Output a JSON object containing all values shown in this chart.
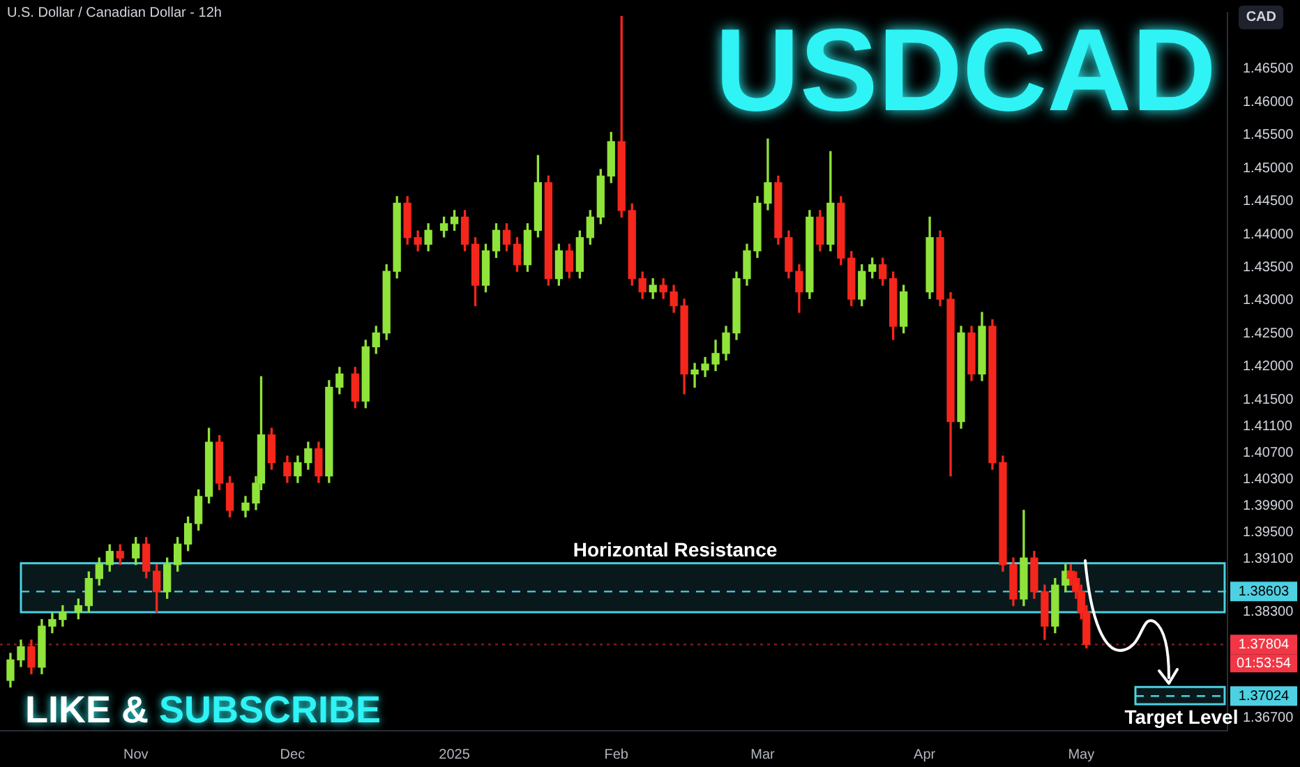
{
  "chart_data": {
    "type": "candlestick",
    "title": "USDCAD",
    "subtitle": "U.S. Dollar / Canadian Dollar - 12h",
    "ylabel": "CAD",
    "annotations": [
      "LIKE & SUBSCRIBE",
      "01:53:54"
    ],
    "x": [
      "2024-10-08",
      "2024-10-10",
      "2024-10-12",
      "2024-10-14",
      "2024-10-16",
      "2024-10-18",
      "2024-10-21",
      "2024-10-23",
      "2024-10-25",
      "2024-10-27",
      "2024-10-29",
      "2024-11-01",
      "2024-11-03",
      "2024-11-05",
      "2024-11-07",
      "2024-11-09",
      "2024-11-11",
      "2024-11-13",
      "2024-11-15",
      "2024-11-17",
      "2024-11-19",
      "2024-11-22",
      "2024-11-24",
      "2024-11-25",
      "2024-11-27",
      "2024-11-30",
      "2024-12-02",
      "2024-12-04",
      "2024-12-06",
      "2024-12-08",
      "2024-12-10",
      "2024-12-13",
      "2024-12-15",
      "2024-12-17",
      "2024-12-19",
      "2024-12-21",
      "2024-12-23",
      "2024-12-25",
      "2024-12-27",
      "2024-12-30",
      "2025-01-01",
      "2025-01-03",
      "2025-01-05",
      "2025-01-07",
      "2025-01-09",
      "2025-01-11",
      "2025-01-13",
      "2025-01-15",
      "2025-01-17",
      "2025-01-19",
      "2025-01-21",
      "2025-01-23",
      "2025-01-25",
      "2025-01-27",
      "2025-01-29",
      "2025-01-31",
      "2025-02-02",
      "2025-02-04",
      "2025-02-06",
      "2025-02-08",
      "2025-02-10",
      "2025-02-12",
      "2025-02-14",
      "2025-02-16",
      "2025-02-18",
      "2025-02-20",
      "2025-02-22",
      "2025-02-24",
      "2025-02-26",
      "2025-02-28",
      "2025-03-02",
      "2025-03-04",
      "2025-03-06",
      "2025-03-08",
      "2025-03-10",
      "2025-03-12",
      "2025-03-14",
      "2025-03-16",
      "2025-03-18",
      "2025-03-20",
      "2025-03-22",
      "2025-03-24",
      "2025-03-26",
      "2025-03-28",
      "2025-04-02",
      "2025-04-04",
      "2025-04-06",
      "2025-04-08",
      "2025-04-10",
      "2025-04-12",
      "2025-04-14",
      "2025-04-16",
      "2025-04-18",
      "2025-04-20",
      "2025-04-22",
      "2025-04-24",
      "2025-04-26",
      "2025-04-28",
      "2025-04-29",
      "2025-04-30",
      "2025-05-01",
      "2025-05-02"
    ],
    "ohlc": [
      [
        1.3726,
        1.3767,
        1.3716,
        1.3757
      ],
      [
        1.3757,
        1.3787,
        1.3747,
        1.3777
      ],
      [
        1.3777,
        1.3787,
        1.3736,
        1.3746
      ],
      [
        1.3746,
        1.3818,
        1.3736,
        1.3808
      ],
      [
        1.3808,
        1.3828,
        1.3798,
        1.3818
      ],
      [
        1.3818,
        1.3839,
        1.3808,
        1.3829
      ],
      [
        1.3829,
        1.3849,
        1.3819,
        1.3839
      ],
      [
        1.3839,
        1.389,
        1.3829,
        1.388
      ],
      [
        1.388,
        1.3911,
        1.387,
        1.3901
      ],
      [
        1.3901,
        1.3931,
        1.3891,
        1.3921
      ],
      [
        1.3921,
        1.3931,
        1.3901,
        1.3911
      ],
      [
        1.3911,
        1.3942,
        1.3901,
        1.3932
      ],
      [
        1.3932,
        1.3942,
        1.3881,
        1.3891
      ],
      [
        1.3891,
        1.3901,
        1.3829,
        1.386
      ],
      [
        1.386,
        1.3911,
        1.385,
        1.3901
      ],
      [
        1.3901,
        1.3942,
        1.3891,
        1.3932
      ],
      [
        1.3932,
        1.3973,
        1.3922,
        1.3963
      ],
      [
        1.3963,
        1.4014,
        1.3953,
        1.4004
      ],
      [
        1.4004,
        1.4107,
        1.3994,
        1.4086
      ],
      [
        1.4086,
        1.4096,
        1.4014,
        1.4024
      ],
      [
        1.4024,
        1.4034,
        1.3973,
        1.3983
      ],
      [
        1.3983,
        1.4004,
        1.3973,
        1.3994
      ],
      [
        1.3994,
        1.4034,
        1.3984,
        1.4024
      ],
      [
        1.4024,
        1.4185,
        1.4014,
        1.4097
      ],
      [
        1.4097,
        1.4107,
        1.4045,
        1.4055
      ],
      [
        1.4055,
        1.4065,
        1.4025,
        1.4035
      ],
      [
        1.4035,
        1.4065,
        1.4025,
        1.4055
      ],
      [
        1.4055,
        1.4086,
        1.4045,
        1.4076
      ],
      [
        1.4076,
        1.4086,
        1.4025,
        1.4035
      ],
      [
        1.4035,
        1.4179,
        1.4025,
        1.4169
      ],
      [
        1.4169,
        1.4199,
        1.4159,
        1.4189
      ],
      [
        1.4189,
        1.4199,
        1.4138,
        1.4148
      ],
      [
        1.4148,
        1.424,
        1.4138,
        1.423
      ],
      [
        1.423,
        1.4261,
        1.422,
        1.4251
      ],
      [
        1.4251,
        1.4354,
        1.4241,
        1.4344
      ],
      [
        1.4344,
        1.4457,
        1.4334,
        1.4447
      ],
      [
        1.4447,
        1.4457,
        1.4385,
        1.4395
      ],
      [
        1.4395,
        1.4405,
        1.4375,
        1.4385
      ],
      [
        1.4385,
        1.4416,
        1.4375,
        1.4406
      ],
      [
        1.4406,
        1.4426,
        1.4396,
        1.4416
      ],
      [
        1.4416,
        1.4436,
        1.4406,
        1.4426
      ],
      [
        1.4426,
        1.4436,
        1.4375,
        1.4385
      ],
      [
        1.4385,
        1.4395,
        1.4292,
        1.4323
      ],
      [
        1.4323,
        1.4385,
        1.4313,
        1.4375
      ],
      [
        1.4375,
        1.4416,
        1.4365,
        1.4406
      ],
      [
        1.4406,
        1.4416,
        1.4375,
        1.4385
      ],
      [
        1.4385,
        1.4395,
        1.4344,
        1.4354
      ],
      [
        1.4354,
        1.4416,
        1.4344,
        1.4406
      ],
      [
        1.4406,
        1.4519,
        1.4396,
        1.4478
      ],
      [
        1.4478,
        1.4488,
        1.4323,
        1.4333
      ],
      [
        1.4333,
        1.4385,
        1.4323,
        1.4375
      ],
      [
        1.4375,
        1.4385,
        1.4334,
        1.4344
      ],
      [
        1.4344,
        1.4405,
        1.4334,
        1.4395
      ],
      [
        1.4395,
        1.4436,
        1.4385,
        1.4426
      ],
      [
        1.4426,
        1.4498,
        1.4416,
        1.4488
      ],
      [
        1.4488,
        1.4554,
        1.4478,
        1.454
      ],
      [
        1.454,
        1.4729,
        1.4426,
        1.4436
      ],
      [
        1.4436,
        1.4446,
        1.4323,
        1.4333
      ],
      [
        1.4333,
        1.4343,
        1.4303,
        1.4313
      ],
      [
        1.4313,
        1.4333,
        1.4303,
        1.4323
      ],
      [
        1.4323,
        1.4333,
        1.4303,
        1.4313
      ],
      [
        1.4313,
        1.4323,
        1.4282,
        1.4292
      ],
      [
        1.4292,
        1.4302,
        1.4159,
        1.4189
      ],
      [
        1.4189,
        1.4205,
        1.4169,
        1.4195
      ],
      [
        1.4195,
        1.4214,
        1.4185,
        1.4204
      ],
      [
        1.4204,
        1.424,
        1.4194,
        1.422
      ],
      [
        1.422,
        1.4261,
        1.421,
        1.4251
      ],
      [
        1.4251,
        1.4343,
        1.4241,
        1.4333
      ],
      [
        1.4333,
        1.4385,
        1.4323,
        1.4375
      ],
      [
        1.4375,
        1.4457,
        1.4365,
        1.4447
      ],
      [
        1.4447,
        1.4544,
        1.4437,
        1.4478
      ],
      [
        1.4478,
        1.4488,
        1.4385,
        1.4395
      ],
      [
        1.4395,
        1.4405,
        1.4334,
        1.4344
      ],
      [
        1.4344,
        1.4354,
        1.4282,
        1.4313
      ],
      [
        1.4313,
        1.4436,
        1.4303,
        1.4426
      ],
      [
        1.4426,
        1.4436,
        1.4375,
        1.4385
      ],
      [
        1.4385,
        1.4525,
        1.4375,
        1.4447
      ],
      [
        1.4447,
        1.4457,
        1.4354,
        1.4364
      ],
      [
        1.4364,
        1.4374,
        1.4292,
        1.4302
      ],
      [
        1.4302,
        1.4354,
        1.4292,
        1.4344
      ],
      [
        1.4344,
        1.4364,
        1.4334,
        1.4354
      ],
      [
        1.4354,
        1.4364,
        1.4323,
        1.4333
      ],
      [
        1.4333,
        1.4343,
        1.4241,
        1.4261
      ],
      [
        1.4261,
        1.4323,
        1.4251,
        1.4313
      ],
      [
        1.4313,
        1.4426,
        1.4303,
        1.4395
      ],
      [
        1.4395,
        1.4405,
        1.4292,
        1.4302
      ],
      [
        1.4302,
        1.4312,
        1.4035,
        1.4117
      ],
      [
        1.4117,
        1.4261,
        1.4107,
        1.4251
      ],
      [
        1.4251,
        1.4261,
        1.4179,
        1.4189
      ],
      [
        1.4189,
        1.4282,
        1.4179,
        1.4261
      ],
      [
        1.4261,
        1.4271,
        1.4045,
        1.4055
      ],
      [
        1.4055,
        1.4065,
        1.3891,
        1.3901
      ],
      [
        1.3901,
        1.3911,
        1.3839,
        1.3849
      ],
      [
        1.3849,
        1.3983,
        1.3839,
        1.3911
      ],
      [
        1.3911,
        1.3921,
        1.385,
        1.386
      ],
      [
        1.386,
        1.387,
        1.3788,
        1.3808
      ],
      [
        1.3808,
        1.388,
        1.3798,
        1.387
      ],
      [
        1.387,
        1.3901,
        1.386,
        1.3891
      ],
      [
        1.3891,
        1.3901,
        1.387,
        1.388
      ],
      [
        1.388,
        1.389,
        1.385,
        1.386
      ],
      [
        1.386,
        1.387,
        1.3819,
        1.3829
      ],
      [
        1.3829,
        1.3839,
        1.3775,
        1.37804
      ]
    ],
    "xlim": [
      "2024-10-06",
      "2025-05-29"
    ],
    "xticks": [
      {
        "value": "2024-11-01",
        "label": "Nov"
      },
      {
        "value": "2024-12-01",
        "label": "Dec"
      },
      {
        "value": "2025-01-01",
        "label": "2025"
      },
      {
        "value": "2025-02-01",
        "label": "Feb"
      },
      {
        "value": "2025-03-01",
        "label": "Mar"
      },
      {
        "value": "2025-04-01",
        "label": "Apr"
      },
      {
        "value": "2025-05-01",
        "label": "May"
      }
    ],
    "ylim": [
      1.365,
      1.4735
    ],
    "yticks": [
      {
        "value": 1.465,
        "label": "1.46500"
      },
      {
        "value": 1.46,
        "label": "1.46000"
      },
      {
        "value": 1.455,
        "label": "1.45500"
      },
      {
        "value": 1.45,
        "label": "1.45000"
      },
      {
        "value": 1.445,
        "label": "1.44500"
      },
      {
        "value": 1.44,
        "label": "1.44000"
      },
      {
        "value": 1.435,
        "label": "1.43500"
      },
      {
        "value": 1.43,
        "label": "1.43000"
      },
      {
        "value": 1.425,
        "label": "1.42500"
      },
      {
        "value": 1.42,
        "label": "1.42000"
      },
      {
        "value": 1.415,
        "label": "1.41500"
      },
      {
        "value": 1.411,
        "label": "1.41100"
      },
      {
        "value": 1.407,
        "label": "1.40700"
      },
      {
        "value": 1.403,
        "label": "1.40300"
      },
      {
        "value": 1.399,
        "label": "1.39900"
      },
      {
        "value": 1.395,
        "label": "1.39500"
      },
      {
        "value": 1.391,
        "label": "1.39100"
      },
      {
        "value": 1.383,
        "label": "1.38300"
      },
      {
        "value": 1.367,
        "label": "1.36700"
      }
    ],
    "bands": [
      {
        "axis": "y",
        "from": 1.3829,
        "to": 1.3903,
        "label": "Horizontal Resistance",
        "color": "#4dd0e1"
      },
      {
        "axis": "y",
        "from": 1.369,
        "to": 1.3716,
        "label": "Target Level",
        "color": "#4dd0e1"
      }
    ],
    "ref_lines": [
      {
        "axis": "y",
        "value": 1.38603,
        "label": "1.38603",
        "color": "#4dd0e1",
        "line_style": "dashed"
      },
      {
        "axis": "y",
        "value": 1.37024,
        "label": "1.37024",
        "color": "#4dd0e1",
        "line_style": "dashed"
      },
      {
        "axis": "y",
        "value": 1.37804,
        "label": "1.37804",
        "color": "#f23645",
        "line_style": "dotted"
      }
    ]
  }
}
